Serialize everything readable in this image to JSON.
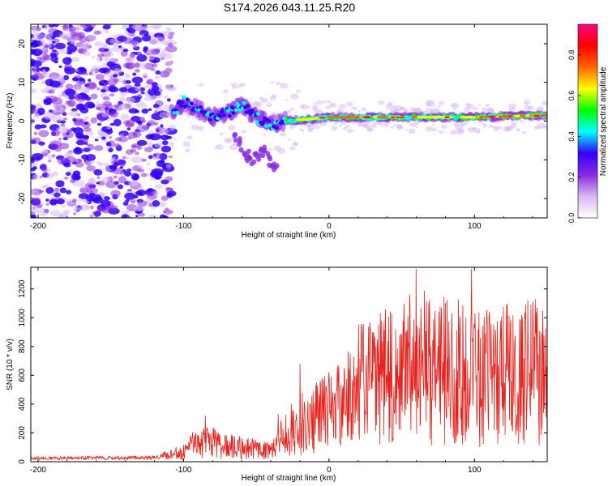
{
  "title": "S174.2026.043.11.25.R20",
  "chart_data": [
    {
      "type": "heatmap",
      "name": "spectrogram",
      "xlabel": "Height of straight line (km)",
      "ylabel": "Frequency (Hz)",
      "xlim": [
        -205,
        150
      ],
      "ylim": [
        -25,
        25
      ],
      "xticks": [
        "-200",
        "-100",
        "0",
        "100"
      ],
      "xtick_values": [
        -200,
        -100,
        0,
        100
      ],
      "yticks": [
        "20",
        "10",
        "0",
        "-10",
        "-20"
      ],
      "ytick_values": [
        20,
        10,
        0,
        -10,
        -20
      ],
      "colorbar": {
        "label": "Normalized spectral amplitude",
        "range": [
          0,
          0.95
        ],
        "ticks": [
          "0.0",
          "0.2",
          "0.4",
          "0.6",
          "0.8"
        ],
        "tick_values": [
          0,
          0.2,
          0.4,
          0.6,
          0.8
        ],
        "stops": [
          "#ffffff",
          "#d8b8f5",
          "#8a2be2",
          "#3300ff",
          "#00ffff",
          "#00ff00",
          "#ffff00",
          "#ff6600",
          "#ff0000",
          "#ff0080"
        ]
      },
      "features": {
        "noise_region_x": [
          -205,
          -108
        ],
        "ridge": [
          [
            -108,
            2
          ],
          [
            -100,
            5
          ],
          [
            -90,
            3
          ],
          [
            -80,
            1
          ],
          [
            -70,
            2
          ],
          [
            -60,
            4
          ],
          [
            -50,
            1
          ],
          [
            -40,
            -1
          ],
          [
            -30,
            0
          ],
          [
            0,
            1
          ],
          [
            50,
            1
          ],
          [
            100,
            1
          ],
          [
            150,
            1.5
          ]
        ],
        "branch": [
          [
            -65,
            -4
          ],
          [
            -55,
            -10
          ],
          [
            -45,
            -8
          ],
          [
            -35,
            -13
          ]
        ]
      }
    },
    {
      "type": "line",
      "name": "snr",
      "xlabel": "Height of straight line (km)",
      "ylabel": "SNR (10 * v/v)",
      "xlim": [
        -205,
        150
      ],
      "ylim": [
        0,
        1350
      ],
      "xticks": [
        "-200",
        "-100",
        "0",
        "100"
      ],
      "xtick_values": [
        -200,
        -100,
        0,
        100
      ],
      "yticks": [
        "0",
        "200",
        "400",
        "600",
        "800",
        "1000",
        "1200"
      ],
      "ytick_values": [
        0,
        200,
        400,
        600,
        800,
        1000,
        1200
      ],
      "color": "#e8231e",
      "envelope_x": [
        -205,
        -120,
        -110,
        -100,
        -90,
        -80,
        -70,
        -60,
        -50,
        -40,
        -30,
        -20,
        -10,
        0,
        10,
        20,
        30,
        40,
        50,
        60,
        70,
        80,
        90,
        100,
        110,
        120,
        130,
        140,
        150
      ],
      "envelope_y": [
        25,
        30,
        50,
        80,
        160,
        150,
        120,
        110,
        100,
        90,
        220,
        300,
        350,
        400,
        480,
        600,
        620,
        700,
        680,
        780,
        720,
        750,
        700,
        650,
        690,
        680,
        700,
        720,
        700
      ],
      "peaks": [
        [
          -85,
          320
        ],
        [
          -35,
          330
        ],
        [
          -20,
          680
        ],
        [
          0,
          620
        ],
        [
          30,
          900
        ],
        [
          60,
          1340
        ],
        [
          90,
          920
        ],
        [
          98,
          1340
        ],
        [
          110,
          1000
        ],
        [
          140,
          1000
        ]
      ]
    }
  ]
}
